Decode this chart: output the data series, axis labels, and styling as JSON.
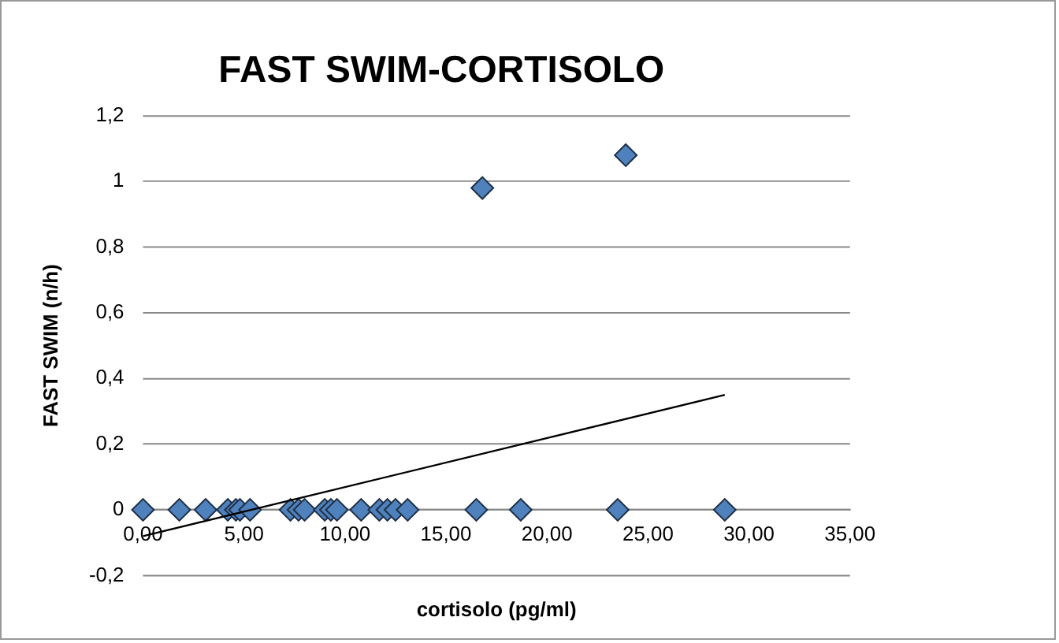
{
  "chart_data": {
    "type": "scatter",
    "title": "FAST SWIM-CORTISOLO",
    "xlabel": "cortisolo (pg/ml)",
    "ylabel": "FAST SWIM (n/h)",
    "series": [
      {
        "type": "scatter",
        "marker": "diamond",
        "color": "#4f81bd",
        "x": [
          0,
          1.8,
          3.1,
          4.2,
          4.6,
          4.8,
          5.3,
          7.3,
          7.7,
          8.0,
          9.0,
          9.3,
          9.6,
          10.8,
          11.7,
          12.1,
          12.5,
          13.1,
          16.5,
          18.7,
          23.5,
          28.8,
          16.8,
          23.9
        ],
        "values": [
          0,
          0,
          0,
          0,
          0,
          0,
          0,
          0,
          0,
          0,
          0,
          0,
          0,
          0,
          0,
          0,
          0,
          0,
          0,
          0,
          0,
          0,
          0.98,
          1.08
        ]
      },
      {
        "type": "line",
        "marker": "none",
        "color": "#000000",
        "x": [
          0,
          28.8
        ],
        "values": [
          -0.08,
          0.35
        ]
      }
    ],
    "xlim": [
      0,
      35
    ],
    "xticks": [
      {
        "value": 0,
        "label": "0,00"
      },
      {
        "value": 5,
        "label": "5,00"
      },
      {
        "value": 10,
        "label": "10,00"
      },
      {
        "value": 15,
        "label": "15,00"
      },
      {
        "value": 20,
        "label": "20,00"
      },
      {
        "value": 25,
        "label": "25,00"
      },
      {
        "value": 30,
        "label": "30,00"
      },
      {
        "value": 35,
        "label": "35,00"
      }
    ],
    "ylim": [
      -0.2,
      1.2
    ],
    "yticks": [
      {
        "value": -0.2,
        "label": "-0,2"
      },
      0,
      {
        "value": 0.2,
        "label": "0,2"
      },
      {
        "value": 0.4,
        "label": "0,4"
      },
      {
        "value": 0.6,
        "label": "0,6"
      },
      {
        "value": 0.8,
        "label": "0,8"
      },
      1,
      {
        "value": 1.2,
        "label": "1,2"
      }
    ],
    "grid": "y",
    "legend": false
  }
}
